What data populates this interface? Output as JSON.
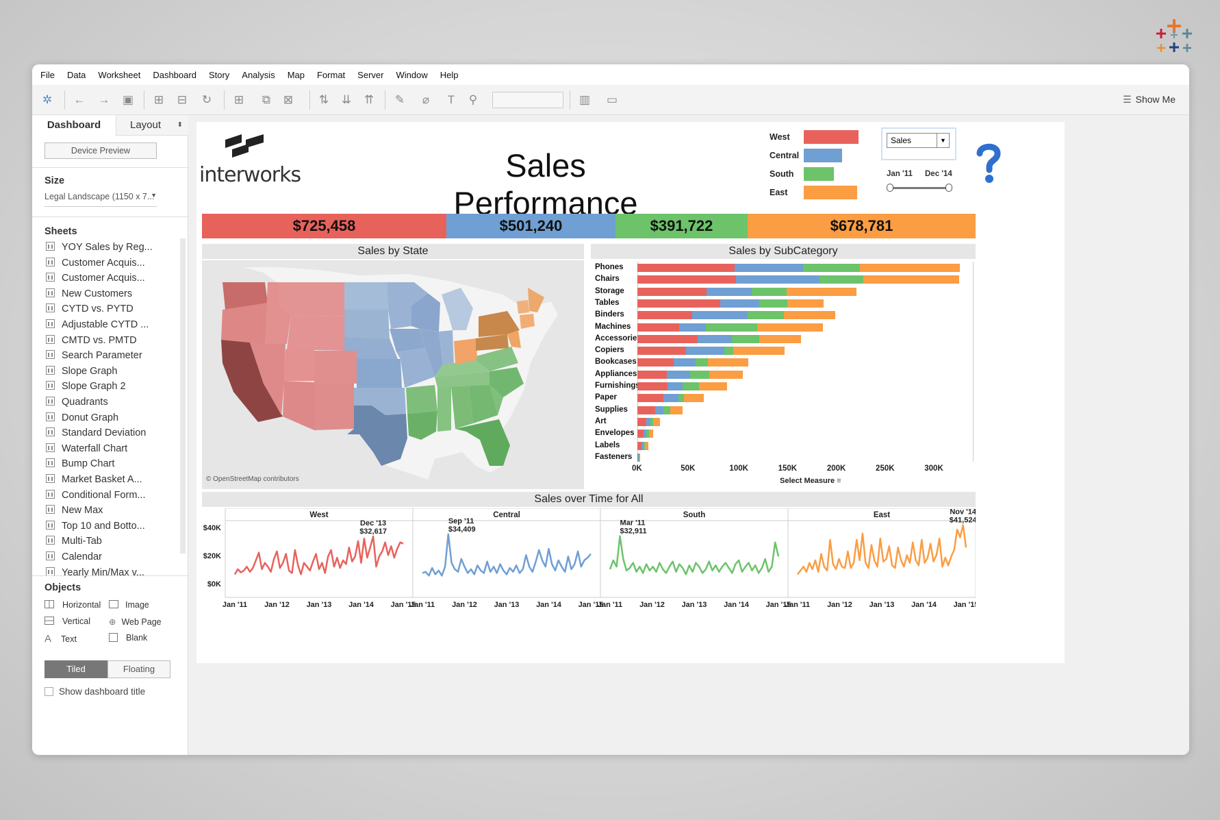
{
  "menu": [
    "File",
    "Data",
    "Worksheet",
    "Dashboard",
    "Story",
    "Analysis",
    "Map",
    "Format",
    "Server",
    "Window",
    "Help"
  ],
  "toolbar": {
    "show_me": "Show Me"
  },
  "sidebar": {
    "tabs": [
      "Dashboard",
      "Layout"
    ],
    "device_preview": "Device Preview",
    "size_heading": "Size",
    "size_value": "Legal Landscape (1150 x 7...",
    "sheets_heading": "Sheets",
    "sheets": [
      "YOY Sales by Reg...",
      "Customer Acquis...",
      "Customer Acquis...",
      "New Customers",
      "CYTD vs. PYTD",
      "Adjustable CYTD ...",
      "CMTD vs. PMTD",
      "Search Parameter",
      "Slope Graph",
      "Slope Graph 2",
      "Quadrants",
      "Donut Graph",
      "Standard Deviation",
      "Waterfall Chart",
      "Bump Chart",
      "Market Basket A...",
      "Conditional Form...",
      "New Max",
      "Top 10 and Botto...",
      "Multi-Tab",
      "Calendar",
      "Yearly Min/Max v..."
    ],
    "objects_heading": "Objects",
    "objects": [
      "Horizontal",
      "Image",
      "Vertical",
      "Web Page",
      "Text",
      "Blank"
    ],
    "mode_tiled": "Tiled",
    "mode_floating": "Floating",
    "show_title": "Show dashboard title"
  },
  "dashboard": {
    "logo_text": "interworks",
    "title": "Sales Performance",
    "legend": [
      {
        "label": "West",
        "color": "#e8625c"
      },
      {
        "label": "Central",
        "color": "#6f9fd3"
      },
      {
        "label": "South",
        "color": "#6cc36a"
      },
      {
        "label": "East",
        "color": "#fb9d43"
      }
    ],
    "measure_select": "Sales",
    "date_start": "Jan '11",
    "date_end": "Dec '14",
    "help_icon": "question-mark-icon",
    "kpis": [
      {
        "value": "$725,458",
        "color": "#e8625c"
      },
      {
        "value": "$501,240",
        "color": "#6f9fd3"
      },
      {
        "value": "$391,722",
        "color": "#6cc36a"
      },
      {
        "value": "$678,781",
        "color": "#fb9d43"
      }
    ],
    "map_title": "Sales by State",
    "map_credit": "© OpenStreetMap contributors",
    "subcat_title": "Sales by SubCategory",
    "subcat_xlabel": "Select Measure",
    "time_title": "Sales over Time for All"
  },
  "chart_data": [
    {
      "type": "bar",
      "stacked": true,
      "orientation": "horizontal",
      "title": "Sales by SubCategory",
      "xlabel": "Select Measure",
      "categories": [
        "Phones",
        "Chairs",
        "Storage",
        "Tables",
        "Binders",
        "Machines",
        "Accessories",
        "Copiers",
        "Bookcases",
        "Appliances",
        "Furnishings",
        "Paper",
        "Supplies",
        "Art",
        "Envelopes",
        "Labels",
        "Fasteners"
      ],
      "xticks": [
        "0K",
        "50K",
        "100K",
        "150K",
        "200K",
        "250K",
        "300K"
      ],
      "xlim": [
        0,
        330000
      ],
      "series": [
        {
          "name": "West",
          "color": "#e8625c",
          "values": [
            100000,
            101000,
            71000,
            85000,
            56000,
            43000,
            62000,
            50000,
            37000,
            30000,
            31000,
            27000,
            18000,
            9000,
            6000,
            4000,
            1000
          ]
        },
        {
          "name": "Central",
          "color": "#6f9fd3",
          "values": [
            70000,
            86000,
            46000,
            40000,
            57000,
            27000,
            35000,
            39000,
            23000,
            24000,
            15000,
            15000,
            9000,
            4000,
            3000,
            2000,
            500
          ]
        },
        {
          "name": "South",
          "color": "#6cc36a",
          "values": [
            58000,
            45000,
            36000,
            29000,
            37000,
            53000,
            28000,
            9000,
            12000,
            20000,
            17000,
            6000,
            7000,
            3000,
            3000,
            2000,
            500
          ]
        },
        {
          "name": "East",
          "color": "#fb9d43",
          "values": [
            103000,
            98000,
            72000,
            37000,
            53000,
            67000,
            43000,
            53000,
            42000,
            34000,
            29000,
            20000,
            12000,
            7000,
            4000,
            3000,
            1000
          ]
        }
      ]
    },
    {
      "type": "line",
      "title": "Sales over Time for All",
      "yticks": [
        "$40K",
        "$20K",
        "$0K"
      ],
      "ylim": [
        0,
        45000
      ],
      "xticks": [
        "Jan '11",
        "Jan '12",
        "Jan '13",
        "Jan '14",
        "Jan '15"
      ],
      "panels": [
        {
          "name": "West",
          "color": "#e8625c",
          "annotation": {
            "label1": "Dec '13",
            "label2": "$32,617"
          },
          "values": [
            3000,
            7000,
            4500,
            6000,
            9000,
            5000,
            8000,
            14000,
            20000,
            7000,
            12000,
            9000,
            5000,
            15000,
            21000,
            8000,
            12000,
            19000,
            6000,
            4000,
            22000,
            10000,
            3000,
            12000,
            9000,
            6000,
            13000,
            19000,
            7000,
            12000,
            4000,
            17000,
            22000,
            9000,
            16000,
            8000,
            14000,
            11000,
            24000,
            13000,
            17000,
            29000,
            12000,
            31000,
            16000,
            24000,
            32617,
            9000,
            17000,
            21000,
            28000,
            18000,
            25000,
            16000,
            23000,
            28000,
            27000
          ]
        },
        {
          "name": "Central",
          "color": "#6f9fd3",
          "annotation": {
            "label1": "Sep '11",
            "label2": "$34,409"
          },
          "values": [
            4000,
            5000,
            2000,
            8000,
            3000,
            6000,
            2000,
            9000,
            34409,
            12000,
            7000,
            5000,
            15000,
            9000,
            4000,
            7000,
            3000,
            10000,
            6000,
            4000,
            13000,
            5000,
            9000,
            4000,
            11000,
            6000,
            3000,
            8000,
            5000,
            10000,
            4000,
            7000,
            18000,
            9000,
            5000,
            13000,
            22000,
            14000,
            9000,
            23000,
            11000,
            6000,
            14000,
            9000,
            5000,
            17000,
            7000,
            11000,
            21000,
            9000,
            14000,
            16000,
            19000
          ]
        },
        {
          "name": "South",
          "color": "#6cc36a",
          "annotation": {
            "label1": "Mar '11",
            "label2": "$32,911"
          },
          "values": [
            7000,
            14000,
            9000,
            32911,
            15000,
            6000,
            8000,
            12000,
            5000,
            9000,
            4000,
            11000,
            6000,
            9000,
            5000,
            12000,
            7000,
            4000,
            9000,
            13000,
            5000,
            11000,
            8000,
            3000,
            10000,
            5000,
            12000,
            9000,
            4000,
            7000,
            13000,
            6000,
            10000,
            5000,
            9000,
            12000,
            8000,
            4000,
            11000,
            14000,
            5000,
            9000,
            12000,
            6000,
            10000,
            4000,
            8000,
            15000,
            5000,
            9000,
            28000,
            17000
          ]
        },
        {
          "name": "East",
          "color": "#fb9d43",
          "annotation": {
            "label1": "Nov '14",
            "label2": "$41,524"
          },
          "values": [
            3000,
            6000,
            9000,
            5000,
            12000,
            7000,
            14000,
            5000,
            19000,
            9000,
            6000,
            30000,
            11000,
            7000,
            15000,
            9000,
            8000,
            21000,
            8000,
            12000,
            30000,
            14000,
            35000,
            12000,
            8000,
            26000,
            14000,
            9000,
            31000,
            13000,
            15000,
            25000,
            10000,
            8000,
            24000,
            14000,
            9000,
            18000,
            12000,
            28000,
            14000,
            10000,
            30000,
            12000,
            16000,
            27000,
            13000,
            18000,
            31000,
            9000,
            16000,
            10000,
            17000,
            22000,
            38000,
            32000,
            41524,
            24000
          ]
        }
      ]
    }
  ]
}
